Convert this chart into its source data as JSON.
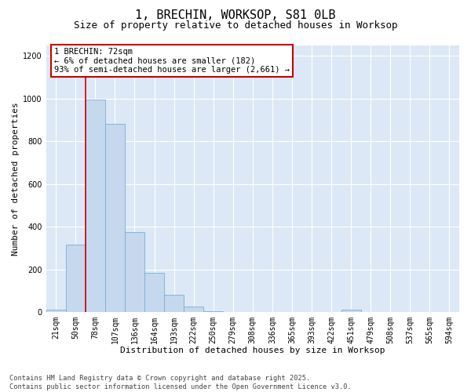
{
  "title": "1, BRECHIN, WORKSOP, S81 0LB",
  "subtitle": "Size of property relative to detached houses in Worksop",
  "xlabel": "Distribution of detached houses by size in Worksop",
  "ylabel": "Number of detached properties",
  "categories": [
    "21sqm",
    "50sqm",
    "78sqm",
    "107sqm",
    "136sqm",
    "164sqm",
    "193sqm",
    "222sqm",
    "250sqm",
    "279sqm",
    "308sqm",
    "336sqm",
    "365sqm",
    "393sqm",
    "422sqm",
    "451sqm",
    "479sqm",
    "508sqm",
    "537sqm",
    "565sqm",
    "594sqm"
  ],
  "values": [
    10,
    315,
    995,
    880,
    375,
    185,
    82,
    25,
    5,
    2,
    1,
    0,
    0,
    0,
    0,
    12,
    0,
    0,
    0,
    0,
    0
  ],
  "bar_color": "#c5d8ee",
  "bar_edge_color": "#7aadd4",
  "vline_color": "#cc0000",
  "vline_x": 1.5,
  "annotation_text": "1 BRECHIN: 72sqm\n← 6% of detached houses are smaller (182)\n93% of semi-detached houses are larger (2,661) →",
  "ylim": [
    0,
    1250
  ],
  "yticks": [
    0,
    200,
    400,
    600,
    800,
    1000,
    1200
  ],
  "plot_bg_color": "#dce8f5",
  "grid_color": "#ffffff",
  "footer_line1": "Contains HM Land Registry data © Crown copyright and database right 2025.",
  "footer_line2": "Contains public sector information licensed under the Open Government Licence v3.0."
}
